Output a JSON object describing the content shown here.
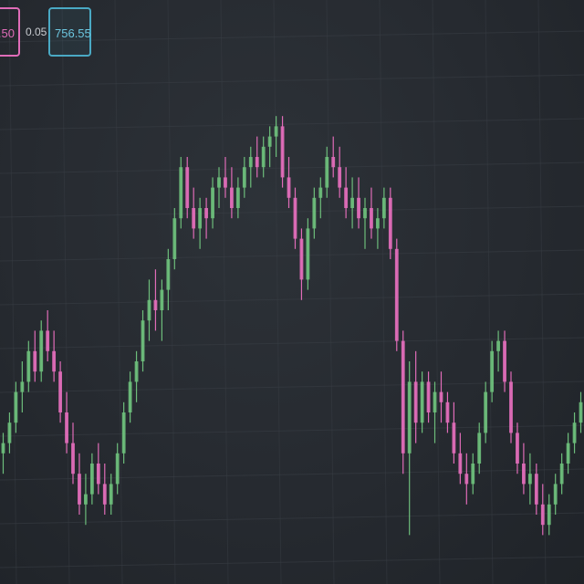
{
  "header": {
    "bid_price": ".50",
    "spread": "0.05",
    "ask_price": "756.55"
  },
  "colors": {
    "background": "#272b31",
    "grid": "#3a3f46",
    "bullish": "#6dbd7b",
    "bearish": "#e06cb8",
    "ask_border": "#4aa9c4",
    "bid_border": "#e06cb8"
  },
  "chart_data": {
    "type": "candlestick",
    "title": "",
    "xlabel": "",
    "ylabel": "",
    "grid": true,
    "ylim": [
      0,
      100
    ],
    "candles": [
      {
        "o": 22,
        "h": 26,
        "l": 18,
        "c": 24
      },
      {
        "o": 24,
        "h": 30,
        "l": 22,
        "c": 28
      },
      {
        "o": 28,
        "h": 36,
        "l": 26,
        "c": 34
      },
      {
        "o": 34,
        "h": 40,
        "l": 30,
        "c": 36
      },
      {
        "o": 36,
        "h": 44,
        "l": 34,
        "c": 42
      },
      {
        "o": 42,
        "h": 46,
        "l": 36,
        "c": 38
      },
      {
        "o": 38,
        "h": 48,
        "l": 36,
        "c": 46
      },
      {
        "o": 46,
        "h": 50,
        "l": 40,
        "c": 42
      },
      {
        "o": 42,
        "h": 46,
        "l": 36,
        "c": 38
      },
      {
        "o": 38,
        "h": 40,
        "l": 28,
        "c": 30
      },
      {
        "o": 30,
        "h": 34,
        "l": 22,
        "c": 24
      },
      {
        "o": 24,
        "h": 28,
        "l": 16,
        "c": 18
      },
      {
        "o": 18,
        "h": 22,
        "l": 10,
        "c": 12
      },
      {
        "o": 12,
        "h": 18,
        "l": 8,
        "c": 14
      },
      {
        "o": 14,
        "h": 22,
        "l": 12,
        "c": 20
      },
      {
        "o": 20,
        "h": 24,
        "l": 14,
        "c": 16
      },
      {
        "o": 16,
        "h": 20,
        "l": 10,
        "c": 12
      },
      {
        "o": 12,
        "h": 18,
        "l": 10,
        "c": 16
      },
      {
        "o": 16,
        "h": 24,
        "l": 14,
        "c": 22
      },
      {
        "o": 22,
        "h": 32,
        "l": 20,
        "c": 30
      },
      {
        "o": 30,
        "h": 38,
        "l": 28,
        "c": 36
      },
      {
        "o": 36,
        "h": 42,
        "l": 32,
        "c": 40
      },
      {
        "o": 40,
        "h": 50,
        "l": 38,
        "c": 48
      },
      {
        "o": 48,
        "h": 56,
        "l": 44,
        "c": 52
      },
      {
        "o": 52,
        "h": 58,
        "l": 46,
        "c": 50
      },
      {
        "o": 50,
        "h": 56,
        "l": 44,
        "c": 54
      },
      {
        "o": 54,
        "h": 62,
        "l": 50,
        "c": 60
      },
      {
        "o": 60,
        "h": 70,
        "l": 58,
        "c": 68
      },
      {
        "o": 68,
        "h": 80,
        "l": 66,
        "c": 78
      },
      {
        "o": 78,
        "h": 80,
        "l": 68,
        "c": 70
      },
      {
        "o": 70,
        "h": 74,
        "l": 64,
        "c": 66
      },
      {
        "o": 66,
        "h": 72,
        "l": 62,
        "c": 70
      },
      {
        "o": 70,
        "h": 72,
        "l": 64,
        "c": 68
      },
      {
        "o": 68,
        "h": 76,
        "l": 66,
        "c": 74
      },
      {
        "o": 74,
        "h": 78,
        "l": 70,
        "c": 76
      },
      {
        "o": 76,
        "h": 80,
        "l": 72,
        "c": 74
      },
      {
        "o": 74,
        "h": 78,
        "l": 68,
        "c": 70
      },
      {
        "o": 70,
        "h": 76,
        "l": 68,
        "c": 74
      },
      {
        "o": 74,
        "h": 80,
        "l": 72,
        "c": 78
      },
      {
        "o": 78,
        "h": 82,
        "l": 74,
        "c": 80
      },
      {
        "o": 80,
        "h": 84,
        "l": 76,
        "c": 78
      },
      {
        "o": 78,
        "h": 84,
        "l": 76,
        "c": 82
      },
      {
        "o": 82,
        "h": 86,
        "l": 78,
        "c": 84
      },
      {
        "o": 84,
        "h": 88,
        "l": 80,
        "c": 86
      },
      {
        "o": 86,
        "h": 88,
        "l": 74,
        "c": 76
      },
      {
        "o": 76,
        "h": 80,
        "l": 70,
        "c": 72
      },
      {
        "o": 72,
        "h": 74,
        "l": 62,
        "c": 64
      },
      {
        "o": 64,
        "h": 66,
        "l": 52,
        "c": 56
      },
      {
        "o": 56,
        "h": 68,
        "l": 54,
        "c": 66
      },
      {
        "o": 66,
        "h": 74,
        "l": 64,
        "c": 72
      },
      {
        "o": 72,
        "h": 76,
        "l": 68,
        "c": 74
      },
      {
        "o": 74,
        "h": 82,
        "l": 72,
        "c": 80
      },
      {
        "o": 80,
        "h": 84,
        "l": 76,
        "c": 78
      },
      {
        "o": 78,
        "h": 82,
        "l": 72,
        "c": 74
      },
      {
        "o": 74,
        "h": 78,
        "l": 68,
        "c": 70
      },
      {
        "o": 70,
        "h": 76,
        "l": 66,
        "c": 72
      },
      {
        "o": 72,
        "h": 76,
        "l": 66,
        "c": 68
      },
      {
        "o": 68,
        "h": 72,
        "l": 62,
        "c": 70
      },
      {
        "o": 70,
        "h": 74,
        "l": 64,
        "c": 66
      },
      {
        "o": 66,
        "h": 70,
        "l": 62,
        "c": 68
      },
      {
        "o": 68,
        "h": 74,
        "l": 66,
        "c": 72
      },
      {
        "o": 72,
        "h": 74,
        "l": 60,
        "c": 62
      },
      {
        "o": 62,
        "h": 64,
        "l": 42,
        "c": 44
      },
      {
        "o": 44,
        "h": 46,
        "l": 18,
        "c": 22
      },
      {
        "o": 22,
        "h": 40,
        "l": 6,
        "c": 36
      },
      {
        "o": 36,
        "h": 42,
        "l": 24,
        "c": 28
      },
      {
        "o": 28,
        "h": 38,
        "l": 26,
        "c": 36
      },
      {
        "o": 36,
        "h": 38,
        "l": 28,
        "c": 30
      },
      {
        "o": 30,
        "h": 36,
        "l": 24,
        "c": 34
      },
      {
        "o": 34,
        "h": 38,
        "l": 28,
        "c": 32
      },
      {
        "o": 32,
        "h": 34,
        "l": 26,
        "c": 28
      },
      {
        "o": 28,
        "h": 32,
        "l": 20,
        "c": 22
      },
      {
        "o": 22,
        "h": 26,
        "l": 16,
        "c": 18
      },
      {
        "o": 18,
        "h": 22,
        "l": 12,
        "c": 16
      },
      {
        "o": 16,
        "h": 22,
        "l": 14,
        "c": 20
      },
      {
        "o": 20,
        "h": 28,
        "l": 18,
        "c": 26
      },
      {
        "o": 26,
        "h": 36,
        "l": 24,
        "c": 34
      },
      {
        "o": 34,
        "h": 44,
        "l": 32,
        "c": 42
      },
      {
        "o": 42,
        "h": 46,
        "l": 38,
        "c": 44
      },
      {
        "o": 44,
        "h": 46,
        "l": 34,
        "c": 36
      },
      {
        "o": 36,
        "h": 38,
        "l": 24,
        "c": 26
      },
      {
        "o": 26,
        "h": 28,
        "l": 18,
        "c": 20
      },
      {
        "o": 20,
        "h": 24,
        "l": 14,
        "c": 16
      },
      {
        "o": 16,
        "h": 22,
        "l": 12,
        "c": 18
      },
      {
        "o": 18,
        "h": 20,
        "l": 10,
        "c": 12
      },
      {
        "o": 12,
        "h": 16,
        "l": 6,
        "c": 8
      },
      {
        "o": 8,
        "h": 14,
        "l": 6,
        "c": 12
      },
      {
        "o": 12,
        "h": 18,
        "l": 10,
        "c": 16
      },
      {
        "o": 16,
        "h": 22,
        "l": 14,
        "c": 20
      },
      {
        "o": 20,
        "h": 26,
        "l": 18,
        "c": 24
      },
      {
        "o": 24,
        "h": 30,
        "l": 22,
        "c": 28
      },
      {
        "o": 28,
        "h": 34,
        "l": 26,
        "c": 32
      }
    ]
  }
}
